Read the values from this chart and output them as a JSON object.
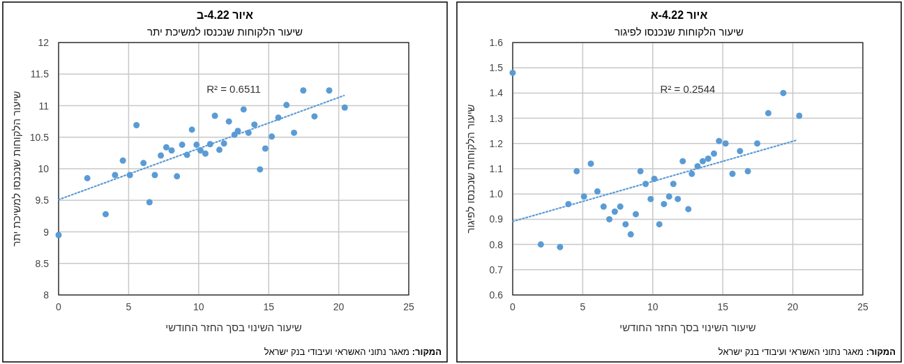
{
  "chart_data": [
    {
      "type": "scatter",
      "title": "איור 4.22-א",
      "subtitle": "שיעור הלקוחות שנכנסו לפיגור",
      "xlabel": "שיעור השינוי בסך החזר החודשי",
      "ylabel": "שיעור הלקוחות שנכנסו לפיגור",
      "xlim": [
        0,
        25
      ],
      "xticks": [
        0,
        5,
        10,
        15,
        20,
        25
      ],
      "ylim": [
        0.6,
        1.6
      ],
      "yticks": [
        {
          "value": 0.6,
          "label": "0.6"
        },
        {
          "value": 0.7,
          "label": "0.7"
        },
        {
          "value": 0.8,
          "label": "0.8"
        },
        {
          "value": 0.9,
          "label": "0.9"
        },
        {
          "value": 1.0,
          "label": "1.0"
        },
        {
          "value": 1.1,
          "label": "1.1"
        },
        {
          "value": 1.2,
          "label": "1.2"
        },
        {
          "value": 1.3,
          "label": "1.3"
        },
        {
          "value": 1.4,
          "label": "1.4"
        },
        {
          "value": 1.5,
          "label": "1.5"
        },
        {
          "value": 1.6,
          "label": "1.6"
        }
      ],
      "grid": true,
      "series": [
        {
          "marker": "circle",
          "color": "#5b9bd5",
          "x": [
            0,
            2.01,
            3.38,
            3.98,
            4.57,
            5.09,
            5.58,
            6.05,
            6.49,
            6.9,
            7.29,
            7.68,
            8.06,
            8.43,
            8.79,
            9.12,
            9.49,
            9.85,
            10.11,
            10.47,
            10.8,
            11.17,
            11.47,
            11.79,
            12.14,
            12.54,
            12.79,
            13.2,
            13.57,
            13.96,
            14.37,
            14.73,
            15.2,
            15.69,
            16.23,
            16.79,
            17.46,
            18.25,
            19.32,
            20.46
          ],
          "values": [
            1.48,
            0.8,
            0.79,
            0.96,
            1.09,
            0.99,
            1.12,
            1.01,
            0.95,
            0.9,
            0.93,
            0.95,
            0.88,
            0.84,
            0.92,
            1.09,
            1.04,
            0.98,
            1.06,
            0.88,
            0.96,
            0.99,
            1.04,
            0.98,
            1.13,
            0.94,
            1.08,
            1.11,
            1.13,
            1.14,
            1.16,
            1.21,
            1.2,
            1.08,
            1.17,
            1.09,
            1.2,
            1.32,
            1.4,
            1.31
          ]
        },
        {
          "type": "line",
          "line_style": "dotted",
          "color": "#5b9bd5",
          "x": [
            0,
            20.2
          ],
          "values": [
            0.891,
            1.212
          ]
        }
      ],
      "annotations": [
        "R² = 0.2544",
        "המקור: מאגר נתוני האשראי ועיבודי בנק ישראל"
      ]
    },
    {
      "type": "scatter",
      "title": "איור 4.22-ב",
      "subtitle": "שיעור הלקוחות שנכנסו למשיכת יתר",
      "xlabel": "שיעור השינוי בסך החזר החודשי",
      "ylabel": "שיעור הלקוחות שנכנסו למשיכת יתר",
      "xlim": [
        0,
        25
      ],
      "xticks": [
        0,
        5,
        10,
        15,
        20,
        25
      ],
      "ylim": [
        8,
        12
      ],
      "yticks": [
        8,
        8.5,
        9,
        9.5,
        10,
        10.5,
        11,
        11.5,
        12
      ],
      "grid": true,
      "series": [
        {
          "marker": "circle",
          "color": "#5b9bd5",
          "x": [
            0,
            2.05,
            3.36,
            4.03,
            4.59,
            5.09,
            5.56,
            6.06,
            6.49,
            6.87,
            7.3,
            7.69,
            8.07,
            8.45,
            8.82,
            9.17,
            9.52,
            9.85,
            10.13,
            10.48,
            10.82,
            11.16,
            11.48,
            11.81,
            12.16,
            12.56,
            12.8,
            13.21,
            13.56,
            13.98,
            14.38,
            14.76,
            15.22,
            15.69,
            16.27,
            16.81,
            17.47,
            18.27,
            19.32,
            20.43
          ],
          "values": [
            8.95,
            9.85,
            9.28,
            9.9,
            10.13,
            9.9,
            10.69,
            10.09,
            9.47,
            9.9,
            10.21,
            10.34,
            10.29,
            9.88,
            10.38,
            10.22,
            10.62,
            10.38,
            10.29,
            10.24,
            10.39,
            10.84,
            10.3,
            10.4,
            10.75,
            10.54,
            10.6,
            10.94,
            10.57,
            10.7,
            9.99,
            10.32,
            10.51,
            10.81,
            11.01,
            10.57,
            11.24,
            10.83,
            11.24,
            10.97
          ]
        },
        {
          "type": "line",
          "line_style": "dotted",
          "color": "#5b9bd5",
          "x": [
            0,
            20.38
          ],
          "values": [
            9.51,
            11.16
          ]
        }
      ],
      "annotations": [
        "R² = 0.6511",
        "המקור: מאגר נתוני האשראי ועיבודי בנק ישראל"
      ]
    }
  ]
}
